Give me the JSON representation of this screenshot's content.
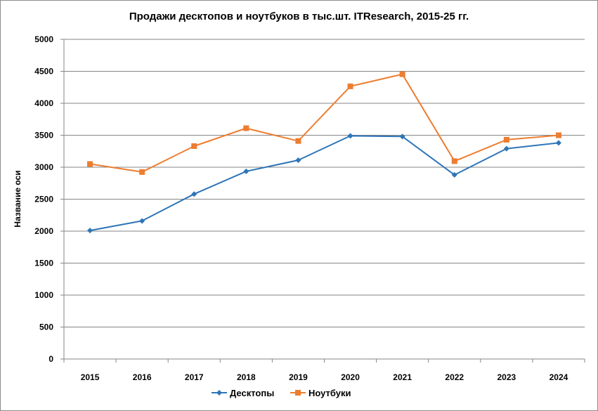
{
  "chart_data": {
    "type": "line",
    "title": "Продажи десктопов и ноутбуков в тыс.шт. ITResearch, 2015-25 гг.",
    "xlabel": "",
    "ylabel": "Название оси",
    "categories": [
      "2015",
      "2016",
      "2017",
      "2018",
      "2019",
      "2020",
      "2021",
      "2022",
      "2023",
      "2024"
    ],
    "ylim": [
      0,
      5000
    ],
    "yticks": [
      0,
      500,
      1000,
      1500,
      2000,
      2500,
      3000,
      3500,
      4000,
      4500,
      5000
    ],
    "grid": true,
    "legend": "bottom",
    "series": [
      {
        "name": "Десктопы",
        "color": "#2e75b6",
        "marker": "diamond",
        "values": [
          2010,
          2160,
          2580,
          2935,
          3110,
          3490,
          3480,
          2880,
          3290,
          3380
        ]
      },
      {
        "name": "Ноутбуки",
        "color": "#ed7d31",
        "marker": "square",
        "values": [
          3050,
          2925,
          3330,
          3610,
          3410,
          4265,
          4455,
          3095,
          3430,
          3500
        ]
      }
    ]
  }
}
